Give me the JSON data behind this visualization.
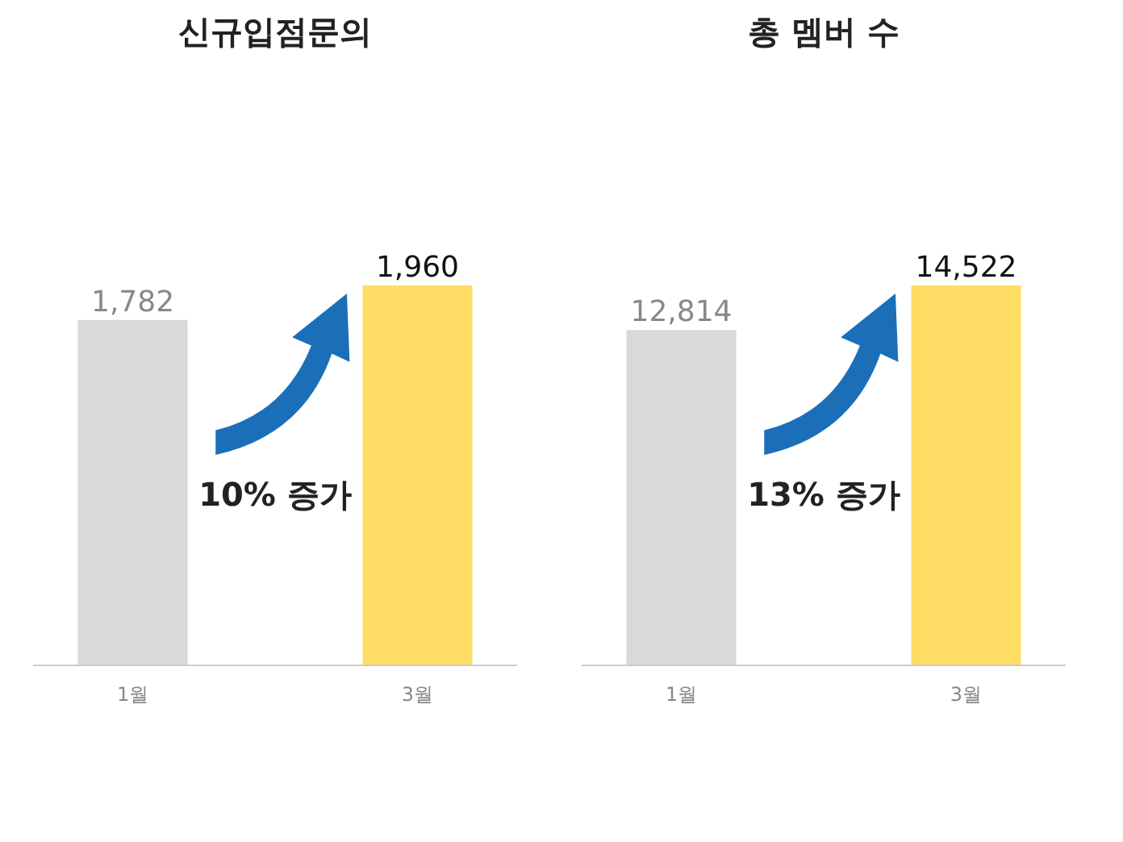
{
  "chart_data": [
    {
      "type": "bar",
      "title": "신규입점문의",
      "categories": [
        "1월",
        "3월"
      ],
      "values": [
        1782,
        1960
      ],
      "colors": [
        "#d9d9d9",
        "#ffdc64"
      ],
      "value_labels": [
        "1,782",
        "1,960"
      ],
      "annotations": [
        "10% 증가"
      ]
    },
    {
      "type": "bar",
      "title": "총 멤버 수",
      "categories": [
        "1월",
        "3월"
      ],
      "values": [
        12814,
        14522
      ],
      "colors": [
        "#d9d9d9",
        "#ffdc64"
      ],
      "value_labels": [
        "12,814",
        "14,522"
      ],
      "annotations": [
        "13% 증가"
      ]
    }
  ]
}
